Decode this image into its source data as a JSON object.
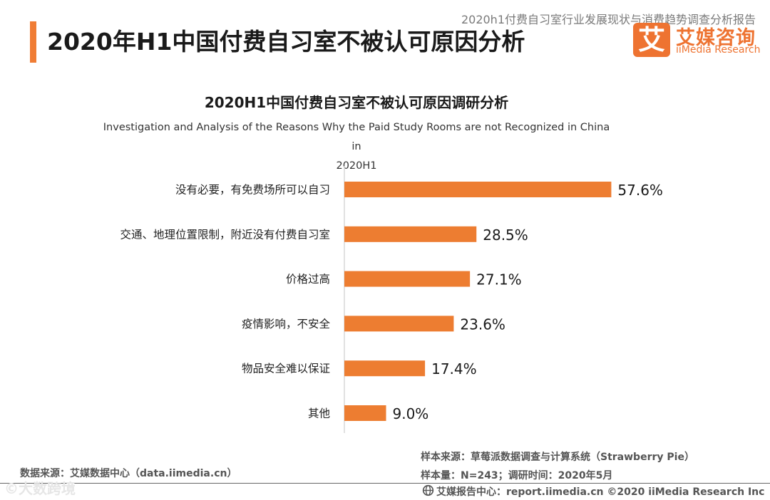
{
  "header": {
    "report_name": "2020h1付费自习室行业发展现状与消费趋势调查分析报告",
    "title": "2020年H1中国付费自习室不被认可原因分析",
    "logo_mark": "艾",
    "logo_cn": "艾媒咨询",
    "logo_en": "iiMedia Research"
  },
  "chart_data": {
    "type": "bar",
    "orientation": "horizontal",
    "title": "2020H1中国付费自习室不被认可原因调研分析",
    "subtitle_line1": "Investigation and Analysis of the Reasons Why the Paid Study Rooms are not Recognized in China in",
    "subtitle_line2": "2020H1",
    "categories": [
      "没有必要，有免费场所可以自习",
      "交通、地理位置限制，附近没有付费自习室",
      "价格过高",
      "疫情影响，不安全",
      "物品安全难以保证",
      "其他"
    ],
    "values": [
      57.6,
      28.5,
      27.1,
      23.6,
      17.4,
      9.0
    ],
    "labels": [
      "57.6%",
      "28.5%",
      "27.1%",
      "23.6%",
      "17.4%",
      "9.0%"
    ],
    "unit": "%",
    "xlim": [
      0,
      60
    ],
    "bar_color": "#ed7d31",
    "axis_color": "#d9d9d9"
  },
  "footer": {
    "data_source": "数据来源：艾媒数据中心（data.iimedia.cn）",
    "sample_source": "样本来源：草莓派数据调查与计算系统（Strawberry Pie）",
    "sample_size": "样本量：N=243；调研时间：2020年5月",
    "report_center": "艾媒报告中心：report.iimedia.cn   ©2020  iiMedia Research  Inc",
    "watermark": "©大数跨境"
  }
}
